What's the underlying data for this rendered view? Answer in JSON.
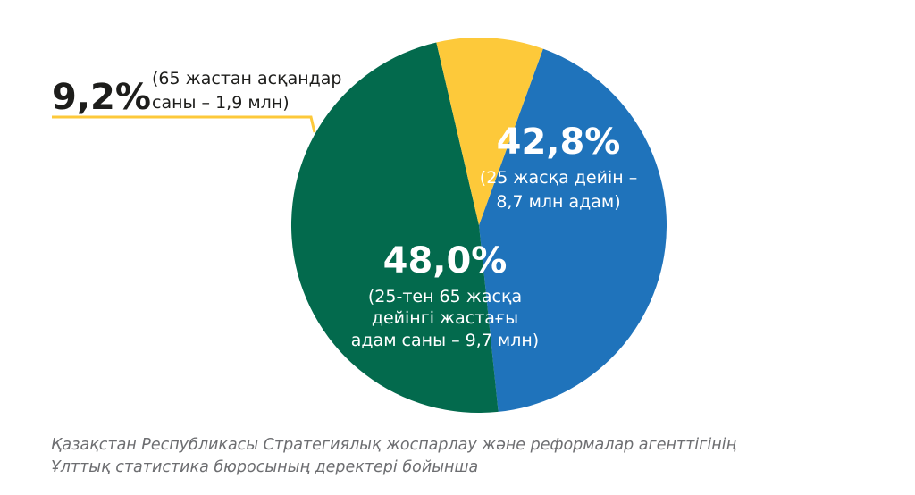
{
  "chart_data": {
    "type": "pie",
    "slices": [
      {
        "id": "under25",
        "value": 42.8,
        "label": "42,8%",
        "note_lines": [
          "(25 жасқа дейін –",
          "8,7 млн адам)"
        ],
        "color": "#1f73bb"
      },
      {
        "id": "25to65",
        "value": 48.0,
        "label": "48,0%",
        "note_lines": [
          "(25-тен 65 жасқа",
          "дейінгі жастағы",
          "адам саны – 9,7 млн)"
        ],
        "color": "#036a4d"
      },
      {
        "id": "over65",
        "value": 9.2,
        "label": "9,2%",
        "note_lines": [
          "(65 жастан асқандар",
          "саны – 1,9 млн)"
        ],
        "color": "#fdc93a"
      }
    ]
  },
  "source": {
    "line1": "Қазақстан Республикасы Стратегиялық жоспарлау және реформалар агенттігінің",
    "line2": "Ұлттық статистика бюросының деректері бойынша"
  },
  "colors": {
    "text_dark": "#1d1d1b",
    "text_light": "#ffffff",
    "leader_line": "#fdc93a",
    "source_text": "#6d6e71"
  }
}
